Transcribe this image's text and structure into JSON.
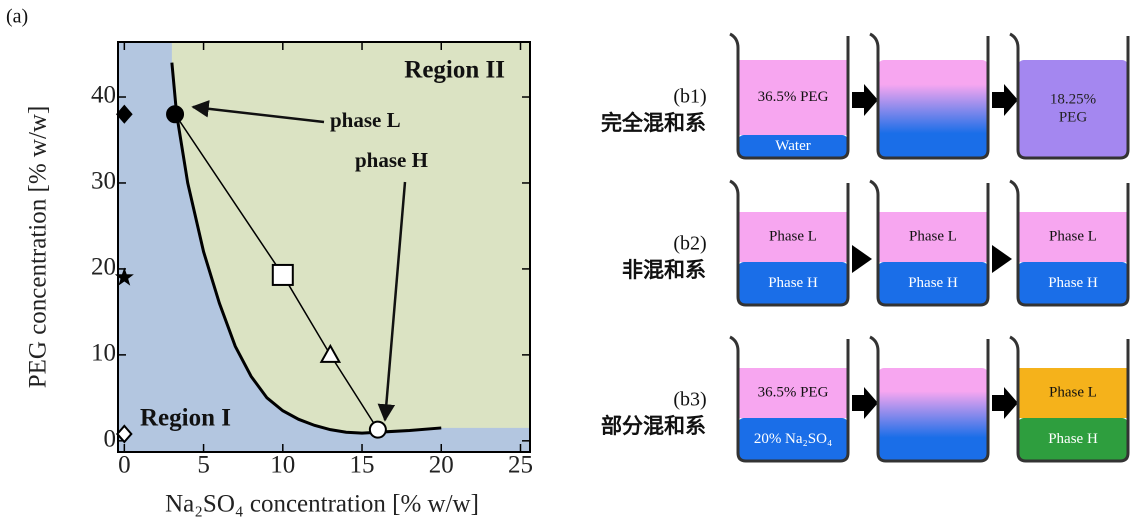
{
  "chart_data": {
    "type": "scatter",
    "panel": "(a)",
    "xlabel": "Na₂SO₄ concentration [% w/w]",
    "ylabel": "PEG concentration [% w/w]",
    "xlim": [
      -0.4,
      25.6
    ],
    "ylim": [
      -1.3,
      46.4
    ],
    "xticks": [
      0,
      5,
      10,
      15,
      20,
      25
    ],
    "yticks": [
      0,
      10,
      20,
      30,
      40
    ],
    "region_colors": [
      "#b3c6e0",
      "#dbe3c3"
    ],
    "series": [
      {
        "color": "#000000",
        "x": [
          3,
          3.3,
          4,
          5,
          6,
          7,
          8,
          9,
          10,
          11,
          12,
          13,
          14,
          15,
          16,
          18,
          20
        ],
        "values": [
          44,
          38,
          30,
          22,
          16,
          11,
          7.5,
          5,
          3.5,
          2.5,
          1.8,
          1.3,
          1.0,
          0.9,
          1.0,
          1.2,
          1.5
        ]
      },
      {
        "color": "#000000",
        "x": [
          3.2,
          10,
          13,
          16
        ],
        "values": [
          38,
          19.3,
          10,
          1.3
        ]
      }
    ],
    "points": [
      {
        "x": 3.2,
        "y": 38,
        "marker": "circle",
        "fill": "#000000"
      },
      {
        "x": 0,
        "y": 38,
        "marker": "diamond",
        "fill": "#000000"
      },
      {
        "x": 0,
        "y": 19,
        "marker": "star",
        "fill": "#000000"
      },
      {
        "x": 10,
        "y": 19.3,
        "marker": "square",
        "fill": "#ffffff"
      },
      {
        "x": 13,
        "y": 10,
        "marker": "triangle",
        "fill": "#ffffff"
      },
      {
        "x": 16,
        "y": 1.3,
        "marker": "circle",
        "fill": "#ffffff"
      },
      {
        "x": 0,
        "y": 0.8,
        "marker": "diamond",
        "fill": "#ffffff"
      }
    ],
    "annotations": [
      "Region II",
      "phase L",
      "phase H",
      "Region I"
    ]
  },
  "diagram": {
    "rows": [
      {
        "label": "(b1)",
        "name": "完全混和系",
        "beakers": [
          {
            "layers": [
              [
                "36.5% PEG"
              ],
              [
                "Water"
              ]
            ]
          },
          {
            "layers": []
          },
          {
            "layers": [
              [
                "18.25%",
                "PEG"
              ]
            ]
          }
        ]
      },
      {
        "label": "(b2)",
        "name": "非混和系",
        "beakers": [
          {
            "layers": [
              [
                "Phase L"
              ],
              [
                "Phase H"
              ]
            ]
          },
          {
            "layers": [
              [
                "Phase L"
              ],
              [
                "Phase H"
              ]
            ]
          },
          {
            "layers": [
              [
                "Phase L"
              ],
              [
                "Phase H"
              ]
            ]
          }
        ]
      },
      {
        "label": "(b3)",
        "name": "部分混和系",
        "beakers": [
          {
            "layers": [
              [
                "36.5% PEG"
              ],
              [
                "20% Na₂SO₄"
              ]
            ]
          },
          {
            "layers": []
          },
          {
            "layers": [
              [
                "Phase L"
              ],
              [
                "Phase H"
              ]
            ]
          }
        ]
      }
    ]
  }
}
